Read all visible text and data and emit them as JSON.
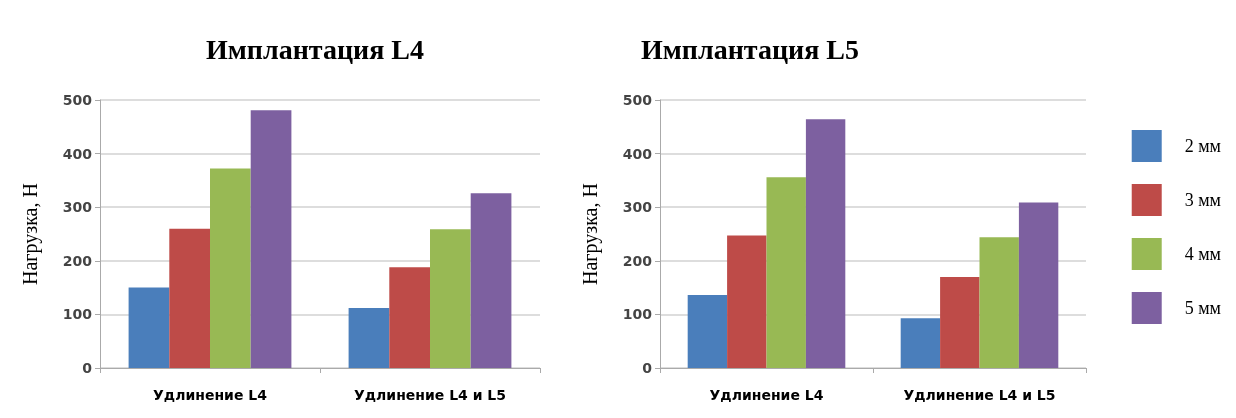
{
  "chart_data": [
    {
      "type": "bar",
      "title": "Имплантация L4",
      "ylabel": "Нагрузка, Н",
      "categories": [
        "Удлинение L4",
        "Удлинение L4 и L5"
      ],
      "ylim": [
        0,
        500
      ],
      "yticks": [
        0,
        100,
        200,
        300,
        400,
        500
      ],
      "grid": "y",
      "legend": false,
      "series": [
        {
          "color": "#4a7ebb",
          "values": [
            150,
            112
          ]
        },
        {
          "color": "#be4b48",
          "values": [
            260,
            188
          ]
        },
        {
          "color": "#98b954",
          "values": [
            372,
            259
          ]
        },
        {
          "color": "#7d60a0",
          "values": [
            481,
            326
          ]
        }
      ]
    },
    {
      "type": "bar",
      "title": "Имплантация L5",
      "ylabel": "Нагрузка, Н",
      "categories": [
        "Удлинение L4",
        "Удлинение L4 и L5"
      ],
      "ylim": [
        0,
        500
      ],
      "yticks": [
        0,
        100,
        200,
        300,
        400,
        500
      ],
      "grid": "y",
      "legend": "right",
      "series": [
        {
          "name": "2 мм",
          "color": "#4a7ebb",
          "values": [
            136,
            93
          ]
        },
        {
          "name": "3 мм",
          "color": "#be4b48",
          "values": [
            247,
            170
          ]
        },
        {
          "name": "4 мм",
          "color": "#98b954",
          "values": [
            356,
            244
          ]
        },
        {
          "name": "5 мм",
          "color": "#7d60a0",
          "values": [
            464,
            309
          ]
        }
      ]
    }
  ]
}
